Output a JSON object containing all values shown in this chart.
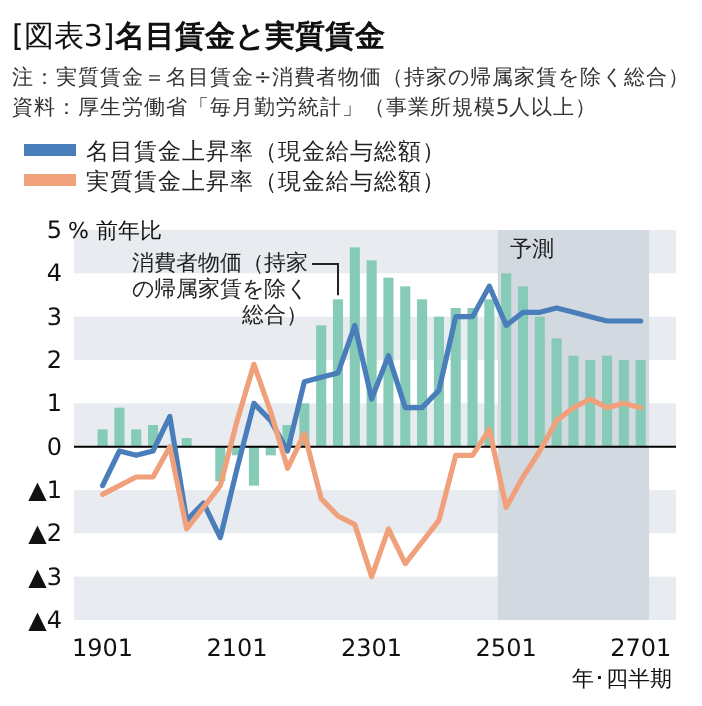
{
  "chart_data": {
    "type": "bar",
    "title": "[図表3]**名目賃金と実質賃金**",
    "annotations": [
      "注：実質賃金＝名目賃金÷消費者物価（持家の帰属家賃を除く総合）",
      "資料：厚生労働省「毎月勤労統計」（事業所規模5人以上）"
    ],
    "ylabel": "% 前年比",
    "xlabel": "年･四半期",
    "categories": [
      "1901",
      null,
      null,
      null,
      null,
      null,
      null,
      null,
      "2101",
      null,
      null,
      null,
      null,
      null,
      null,
      null,
      "2301",
      null,
      null,
      null,
      null,
      null,
      null,
      null,
      "2501",
      null,
      null,
      null,
      null,
      null,
      null,
      null,
      "2701"
    ],
    "ylim": [
      -4,
      5
    ],
    "yticks": [
      {
        "value": -4,
        "label": "▲4"
      },
      {
        "value": -3,
        "label": "▲3"
      },
      {
        "value": -2,
        "label": "▲2"
      },
      {
        "value": -1,
        "label": "▲1"
      },
      0,
      1,
      2,
      3,
      4,
      5
    ],
    "legend": "top",
    "ref_lines": [
      {
        "axis": "y",
        "value": 0,
        "color": "#000000"
      }
    ],
    "bands": [
      {
        "axis": "x",
        "from": "2501",
        "to": "2701",
        "label": "予測",
        "color": "#d3d9e0"
      },
      {
        "axis": "y",
        "from": 4,
        "to": 5,
        "color": "#e8ecf0"
      },
      {
        "axis": "y",
        "from": 2,
        "to": 3,
        "color": "#e8ecf0"
      },
      {
        "axis": "y",
        "from": 0,
        "to": 1,
        "color": "#e8ecf0"
      },
      {
        "axis": "y",
        "from": -2,
        "to": -1,
        "color": "#e8ecf0"
      },
      {
        "axis": "y",
        "from": -4,
        "to": -3,
        "color": "#e8ecf0"
      }
    ],
    "series": [
      {
        "name": "消費者物価（持家の帰属家賃を除く総合）",
        "color": "#86cbb8",
        "values": [
          0.4,
          0.9,
          0.4,
          0.5,
          null,
          0.2,
          0.0,
          -0.8,
          -0.2,
          -0.9,
          -0.2,
          0.5,
          1.0,
          2.8,
          3.4,
          4.6,
          4.3,
          3.9,
          3.7,
          3.4,
          3.0,
          3.2,
          3.2,
          3.4,
          4.0,
          3.7,
          3.0,
          2.5,
          2.1,
          2.0,
          2.1,
          2.0,
          2.0
        ]
      },
      {
        "name": "名目賃金上昇率（現金給与総額）",
        "type": "line",
        "color": "#4a7ebb",
        "values": [
          -0.9,
          -0.1,
          -0.2,
          -0.1,
          0.7,
          -1.7,
          -1.3,
          -2.1,
          -0.5,
          1.0,
          0.6,
          -0.1,
          1.5,
          1.6,
          1.7,
          2.8,
          1.1,
          2.1,
          0.9,
          0.9,
          1.3,
          3.0,
          3.0,
          3.7,
          2.8,
          3.1,
          3.1,
          3.2,
          3.1,
          3.0,
          2.9,
          2.9,
          2.9
        ]
      },
      {
        "name": "実質賃金上昇率（現金給与総額）",
        "type": "line",
        "color": "#f0a07a",
        "values": [
          -1.1,
          -0.9,
          -0.7,
          -0.7,
          0.0,
          -1.9,
          -1.4,
          -0.9,
          0.6,
          1.9,
          0.8,
          -0.5,
          0.3,
          -1.2,
          -1.6,
          -1.8,
          -3.0,
          -1.9,
          -2.7,
          -2.2,
          -1.7,
          -0.2,
          -0.2,
          0.4,
          -1.4,
          -0.7,
          -0.1,
          0.6,
          0.9,
          1.1,
          0.9,
          1.0,
          0.9
        ]
      }
    ]
  }
}
